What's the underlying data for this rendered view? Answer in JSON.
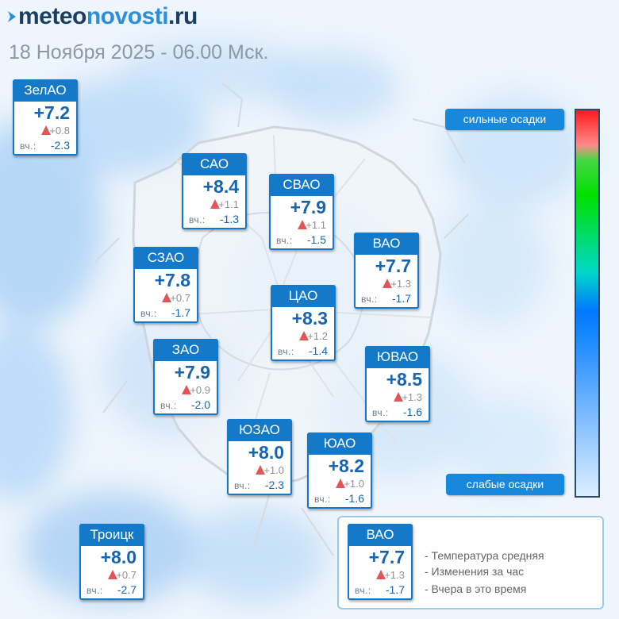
{
  "header": {
    "logo_part1": "meteo",
    "logo_part2": "novosti",
    "logo_part3": ".ru",
    "date_line": "18 Ноября 2025 - 06.00 Мск."
  },
  "districts": [
    {
      "name": "ЗелАО",
      "temp": "+7.2",
      "change": "+0.8",
      "yesterday_label": "вч.:",
      "yesterday": "-2.3"
    },
    {
      "name": "САО",
      "temp": "+8.4",
      "change": "+1.1",
      "yesterday_label": "вч.:",
      "yesterday": "-1.3"
    },
    {
      "name": "СВАО",
      "temp": "+7.9",
      "change": "+1.1",
      "yesterday_label": "вч.:",
      "yesterday": "-1.5"
    },
    {
      "name": "СЗАО",
      "temp": "+7.8",
      "change": "+0.7",
      "yesterday_label": "вч.:",
      "yesterday": "-1.7"
    },
    {
      "name": "ВАО",
      "temp": "+7.7",
      "change": "+1.3",
      "yesterday_label": "вч.:",
      "yesterday": "-1.7"
    },
    {
      "name": "ЦАО",
      "temp": "+8.3",
      "change": "+1.2",
      "yesterday_label": "вч.:",
      "yesterday": "-1.4"
    },
    {
      "name": "ЗАО",
      "temp": "+7.9",
      "change": "+0.9",
      "yesterday_label": "вч.:",
      "yesterday": "-2.0"
    },
    {
      "name": "ЮВАО",
      "temp": "+8.5",
      "change": "+1.3",
      "yesterday_label": "вч.:",
      "yesterday": "-1.6"
    },
    {
      "name": "ЮЗАО",
      "temp": "+8.0",
      "change": "+1.0",
      "yesterday_label": "вч.:",
      "yesterday": "-2.3"
    },
    {
      "name": "ЮАО",
      "temp": "+8.2",
      "change": "+1.0",
      "yesterday_label": "вч.:",
      "yesterday": "-1.6"
    },
    {
      "name": "Троицк",
      "temp": "+8.0",
      "change": "+0.7",
      "yesterday_label": "вч.:",
      "yesterday": "-2.7"
    }
  ],
  "precip_scale": {
    "top_label": "сильные осадки",
    "bottom_label": "слабые осадки",
    "colors": [
      "#ff1a1a",
      "#00e000",
      "#0078ff",
      "#dbeeff"
    ]
  },
  "legend": {
    "sample": {
      "name": "ВАО",
      "temp": "+7.7",
      "change": "+1.3",
      "yesterday_label": "вч.:",
      "yesterday": "-1.7"
    },
    "items": [
      "- Температура средняя",
      "- Изменения за час",
      "- Вчера в это время"
    ]
  },
  "colors": {
    "card_header": "#1479c9",
    "temperature_text": "#1565b0",
    "change_arrow": "#e15759",
    "logo_dark": "#1b3f63",
    "logo_blue": "#2a8fdc"
  }
}
